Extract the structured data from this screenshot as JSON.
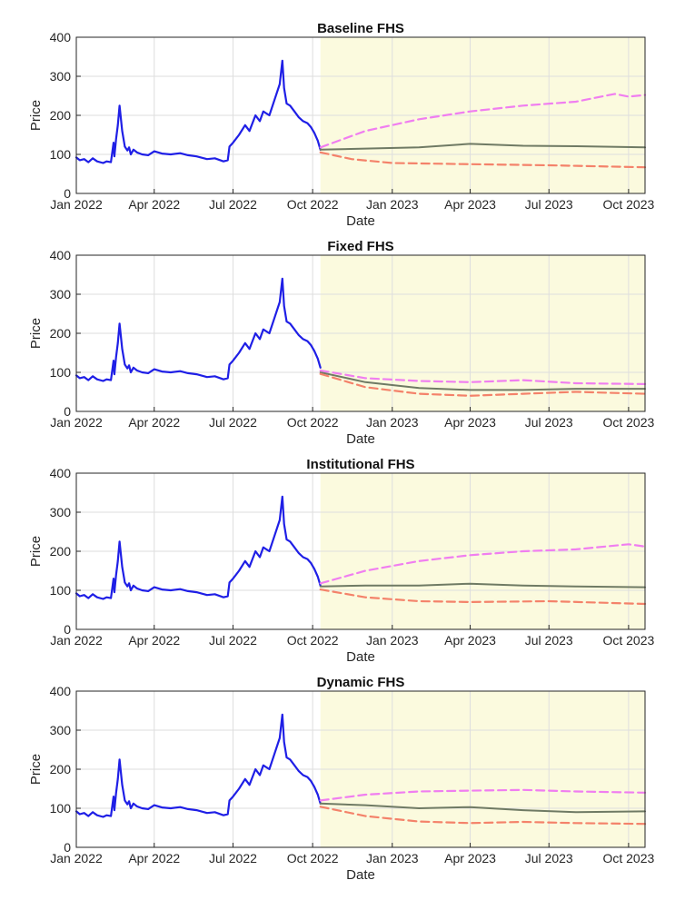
{
  "colors": {
    "observed": "#1f1fe6",
    "median": "#6f7a64",
    "upper": "#f07ef0",
    "lower": "#f4826a",
    "forecast_region": "#fbfade"
  },
  "chart_data": [
    {
      "type": "line",
      "title": "Baseline FHS",
      "xlabel": "Date",
      "ylabel": "Price",
      "ylim": [
        0,
        400
      ],
      "yticks": [
        0,
        100,
        200,
        300,
        400
      ],
      "xlim": [
        "2022-01-01",
        "2023-10-20"
      ],
      "xticks": [
        {
          "date": "2022-01-01",
          "label": "Jan 2022"
        },
        {
          "date": "2022-04-01",
          "label": "Apr 2022"
        },
        {
          "date": "2022-07-01",
          "label": "Jul 2022"
        },
        {
          "date": "2022-10-01",
          "label": "Oct 2022"
        },
        {
          "date": "2023-01-01",
          "label": "Jan 2023"
        },
        {
          "date": "2023-04-01",
          "label": "Apr 2023"
        },
        {
          "date": "2023-07-01",
          "label": "Jul 2023"
        },
        {
          "date": "2023-10-01",
          "label": "Oct 2023"
        }
      ],
      "grid": true,
      "forecast_start": "2022-10-10",
      "series": [
        {
          "role": "median",
          "x": [
            "2022-10-10",
            "2022-12-01",
            "2023-02-01",
            "2023-04-01",
            "2023-06-01",
            "2023-08-01",
            "2023-10-20"
          ],
          "y": [
            112,
            115,
            118,
            127,
            122,
            121,
            118
          ]
        },
        {
          "role": "upper",
          "x": [
            "2022-10-10",
            "2022-12-01",
            "2023-02-01",
            "2023-04-01",
            "2023-06-01",
            "2023-08-01",
            "2023-09-15",
            "2023-10-01",
            "2023-10-20"
          ],
          "y": [
            118,
            160,
            190,
            210,
            225,
            235,
            255,
            248,
            252
          ]
        },
        {
          "role": "lower",
          "x": [
            "2022-10-10",
            "2022-11-15",
            "2023-01-01",
            "2023-04-01",
            "2023-07-01",
            "2023-10-20"
          ],
          "y": [
            105,
            88,
            78,
            75,
            72,
            67
          ]
        }
      ]
    },
    {
      "type": "line",
      "title": "Fixed FHS",
      "xlabel": "Date",
      "ylabel": "Price",
      "ylim": [
        0,
        400
      ],
      "yticks": [
        0,
        100,
        200,
        300,
        400
      ],
      "xlim": [
        "2022-01-01",
        "2023-10-20"
      ],
      "xticks": [
        {
          "date": "2022-01-01",
          "label": "Jan 2022"
        },
        {
          "date": "2022-04-01",
          "label": "Apr 2022"
        },
        {
          "date": "2022-07-01",
          "label": "Jul 2022"
        },
        {
          "date": "2022-10-01",
          "label": "Oct 2022"
        },
        {
          "date": "2023-01-01",
          "label": "Jan 2023"
        },
        {
          "date": "2023-04-01",
          "label": "Apr 2023"
        },
        {
          "date": "2023-07-01",
          "label": "Jul 2023"
        },
        {
          "date": "2023-10-01",
          "label": "Oct 2023"
        }
      ],
      "grid": true,
      "forecast_start": "2022-10-10",
      "series": [
        {
          "role": "median",
          "x": [
            "2022-10-10",
            "2022-12-01",
            "2023-02-01",
            "2023-04-01",
            "2023-06-01",
            "2023-08-01",
            "2023-10-20"
          ],
          "y": [
            100,
            75,
            60,
            55,
            55,
            58,
            58
          ]
        },
        {
          "role": "upper",
          "x": [
            "2022-10-10",
            "2022-12-01",
            "2023-02-01",
            "2023-04-01",
            "2023-06-01",
            "2023-08-01",
            "2023-10-20"
          ],
          "y": [
            105,
            85,
            78,
            75,
            80,
            72,
            70
          ]
        },
        {
          "role": "lower",
          "x": [
            "2022-10-10",
            "2022-12-01",
            "2023-02-01",
            "2023-04-01",
            "2023-06-01",
            "2023-08-01",
            "2023-10-20"
          ],
          "y": [
            96,
            62,
            45,
            40,
            45,
            50,
            45
          ]
        }
      ]
    },
    {
      "type": "line",
      "title": "Institutional FHS",
      "xlabel": "Date",
      "ylabel": "Price",
      "ylim": [
        0,
        400
      ],
      "yticks": [
        0,
        100,
        200,
        300,
        400
      ],
      "xlim": [
        "2022-01-01",
        "2023-10-20"
      ],
      "xticks": [
        {
          "date": "2022-01-01",
          "label": "Jan 2022"
        },
        {
          "date": "2022-04-01",
          "label": "Apr 2022"
        },
        {
          "date": "2022-07-01",
          "label": "Jul 2022"
        },
        {
          "date": "2022-10-01",
          "label": "Oct 2022"
        },
        {
          "date": "2023-01-01",
          "label": "Jan 2023"
        },
        {
          "date": "2023-04-01",
          "label": "Apr 2023"
        },
        {
          "date": "2023-07-01",
          "label": "Jul 2023"
        },
        {
          "date": "2023-10-01",
          "label": "Oct 2023"
        }
      ],
      "grid": true,
      "forecast_start": "2022-10-10",
      "series": [
        {
          "role": "median",
          "x": [
            "2022-10-10",
            "2022-12-01",
            "2023-02-01",
            "2023-04-01",
            "2023-06-01",
            "2023-08-01",
            "2023-10-20"
          ],
          "y": [
            110,
            112,
            112,
            117,
            112,
            110,
            108
          ]
        },
        {
          "role": "upper",
          "x": [
            "2022-10-10",
            "2022-12-01",
            "2023-02-01",
            "2023-04-01",
            "2023-06-01",
            "2023-08-01",
            "2023-10-01",
            "2023-10-20"
          ],
          "y": [
            118,
            150,
            175,
            190,
            200,
            205,
            218,
            212
          ]
        },
        {
          "role": "lower",
          "x": [
            "2022-10-10",
            "2022-12-01",
            "2023-02-01",
            "2023-04-01",
            "2023-07-01",
            "2023-10-20"
          ],
          "y": [
            102,
            82,
            72,
            70,
            72,
            65
          ]
        }
      ]
    },
    {
      "type": "line",
      "title": "Dynamic FHS",
      "xlabel": "Date",
      "ylabel": "Price",
      "ylim": [
        0,
        400
      ],
      "yticks": [
        0,
        100,
        200,
        300,
        400
      ],
      "xlim": [
        "2022-01-01",
        "2023-10-20"
      ],
      "xticks": [
        {
          "date": "2022-01-01",
          "label": "Jan 2022"
        },
        {
          "date": "2022-04-01",
          "label": "Apr 2022"
        },
        {
          "date": "2022-07-01",
          "label": "Jul 2022"
        },
        {
          "date": "2022-10-01",
          "label": "Oct 2022"
        },
        {
          "date": "2023-01-01",
          "label": "Jan 2023"
        },
        {
          "date": "2023-04-01",
          "label": "Apr 2023"
        },
        {
          "date": "2023-07-01",
          "label": "Jul 2023"
        },
        {
          "date": "2023-10-01",
          "label": "Oct 2023"
        }
      ],
      "grid": true,
      "forecast_start": "2022-10-10",
      "series": [
        {
          "role": "median",
          "x": [
            "2022-10-10",
            "2022-12-01",
            "2023-02-01",
            "2023-04-01",
            "2023-06-01",
            "2023-08-01",
            "2023-10-20"
          ],
          "y": [
            112,
            108,
            100,
            103,
            95,
            90,
            92
          ]
        },
        {
          "role": "upper",
          "x": [
            "2022-10-10",
            "2022-12-01",
            "2023-02-01",
            "2023-04-01",
            "2023-06-01",
            "2023-08-01",
            "2023-10-20"
          ],
          "y": [
            120,
            135,
            143,
            145,
            147,
            143,
            140
          ]
        },
        {
          "role": "lower",
          "x": [
            "2022-10-10",
            "2022-12-01",
            "2023-02-01",
            "2023-04-01",
            "2023-06-01",
            "2023-08-01",
            "2023-10-20"
          ],
          "y": [
            104,
            80,
            66,
            62,
            65,
            62,
            60
          ]
        }
      ]
    }
  ],
  "observed_series": {
    "role": "observed",
    "x": [
      "2022-01-01",
      "2022-01-05",
      "2022-01-10",
      "2022-01-15",
      "2022-01-20",
      "2022-01-25",
      "2022-02-01",
      "2022-02-05",
      "2022-02-10",
      "2022-02-13",
      "2022-02-14",
      "2022-02-16",
      "2022-02-18",
      "2022-02-20",
      "2022-02-23",
      "2022-02-26",
      "2022-03-01",
      "2022-03-03",
      "2022-03-05",
      "2022-03-08",
      "2022-03-12",
      "2022-03-18",
      "2022-03-25",
      "2022-04-01",
      "2022-04-10",
      "2022-04-20",
      "2022-05-01",
      "2022-05-10",
      "2022-05-20",
      "2022-06-01",
      "2022-06-10",
      "2022-06-20",
      "2022-06-25",
      "2022-06-27",
      "2022-07-01",
      "2022-07-08",
      "2022-07-15",
      "2022-07-20",
      "2022-07-27",
      "2022-08-01",
      "2022-08-05",
      "2022-08-12",
      "2022-08-18",
      "2022-08-24",
      "2022-08-27",
      "2022-08-29",
      "2022-09-01",
      "2022-09-05",
      "2022-09-10",
      "2022-09-15",
      "2022-09-20",
      "2022-09-25",
      "2022-09-29",
      "2022-10-03",
      "2022-10-07",
      "2022-10-10"
    ],
    "y": [
      92,
      85,
      88,
      80,
      90,
      82,
      78,
      82,
      80,
      130,
      95,
      140,
      175,
      225,
      160,
      120,
      110,
      118,
      100,
      112,
      105,
      100,
      98,
      108,
      102,
      100,
      103,
      98,
      95,
      88,
      90,
      82,
      85,
      120,
      130,
      150,
      175,
      160,
      200,
      185,
      210,
      200,
      240,
      280,
      340,
      270,
      230,
      225,
      210,
      195,
      185,
      180,
      170,
      155,
      135,
      112
    ]
  }
}
